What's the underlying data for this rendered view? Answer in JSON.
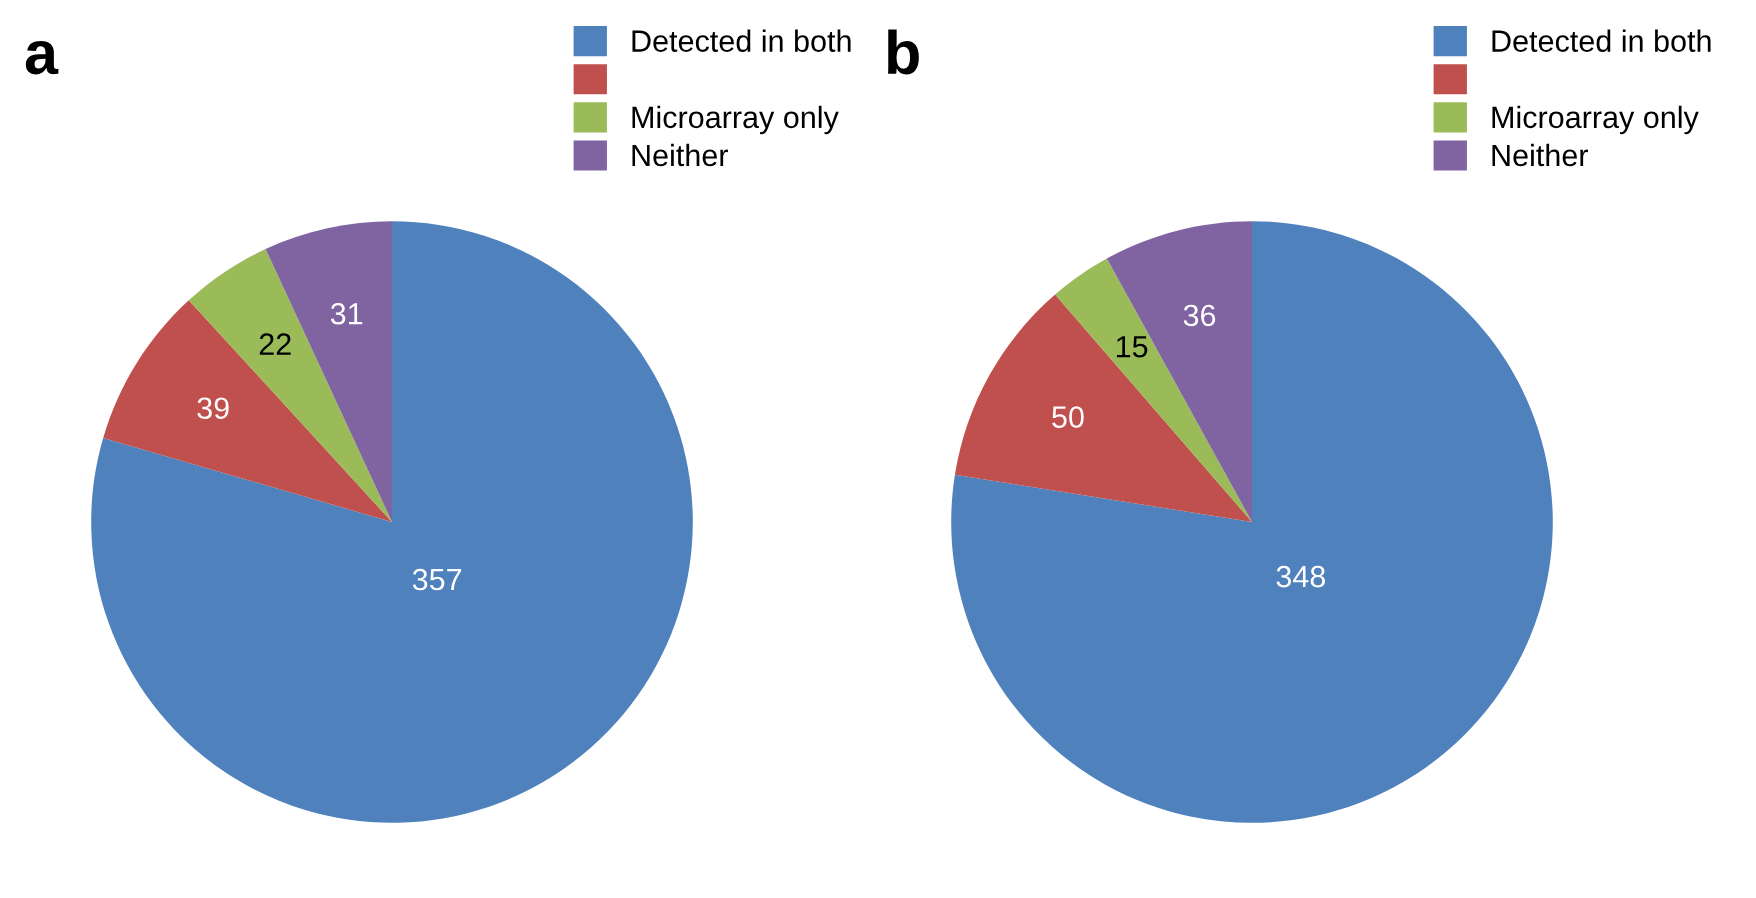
{
  "chart_data": [
    {
      "type": "pie",
      "title": "a",
      "categories": [
        "Detected in both",
        null,
        "Microarray only",
        "Neither"
      ],
      "values": [
        357,
        39,
        22,
        31
      ],
      "colors": [
        "#4f81bd",
        "#c0504d",
        "#9bbb59",
        "#8064a2"
      ],
      "data_labels": true,
      "legend": "top right"
    },
    {
      "type": "pie",
      "title": "b",
      "categories": [
        "Detected in both",
        null,
        "Microarray only",
        "Neither"
      ],
      "values": [
        348,
        50,
        15,
        36
      ],
      "colors": [
        "#4f81bd",
        "#c0504d",
        "#9bbb59",
        "#8064a2"
      ],
      "data_labels": true,
      "legend": "top right"
    }
  ]
}
